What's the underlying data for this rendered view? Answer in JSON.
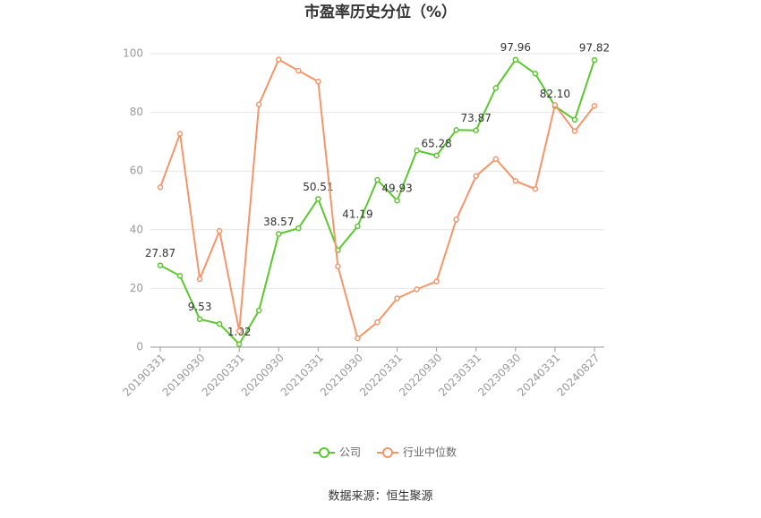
{
  "chart_data": {
    "type": "line",
    "title": "市盈率历史分位（%）",
    "categories": [
      "20190331",
      null,
      "20190930",
      null,
      "20200331",
      null,
      "20200930",
      null,
      "20210331",
      null,
      "20210930",
      null,
      "20220331",
      null,
      "20220930",
      null,
      "20230331",
      null,
      "20230930",
      null,
      "20240331",
      null,
      "20240827"
    ],
    "series": [
      {
        "name": "公司",
        "color": "#5cc72f",
        "values": [
          27.87,
          24.3,
          9.53,
          7.9,
          1.02,
          12.5,
          38.57,
          40.5,
          50.51,
          33.0,
          41.19,
          57.0,
          49.93,
          67.0,
          65.28,
          74.0,
          73.87,
          88.3,
          97.96,
          93.2,
          82.1,
          77.5,
          97.82
        ],
        "value_labels": [
          "27.87",
          null,
          "9.53",
          null,
          "1.02",
          null,
          "38.57",
          null,
          "50.51",
          null,
          "41.19",
          null,
          "49.93",
          null,
          "65.28",
          null,
          "73.87",
          null,
          "97.96",
          null,
          "82.10",
          null,
          "97.82"
        ]
      },
      {
        "name": "行业中位数",
        "color": "#f4956a",
        "values": [
          54.5,
          72.7,
          23.2,
          39.6,
          5.5,
          82.7,
          98.0,
          94.2,
          90.5,
          27.5,
          3.0,
          8.5,
          16.6,
          19.7,
          22.4,
          43.5,
          58.3,
          64.1,
          56.6,
          53.9,
          82.5,
          73.6,
          82.2
        ]
      }
    ],
    "ylim": [
      0,
      100
    ],
    "yticks": [
      0,
      20,
      40,
      60,
      80,
      100
    ],
    "grid": true,
    "legend": "bottom",
    "source": "数据来源：恒生聚源"
  }
}
